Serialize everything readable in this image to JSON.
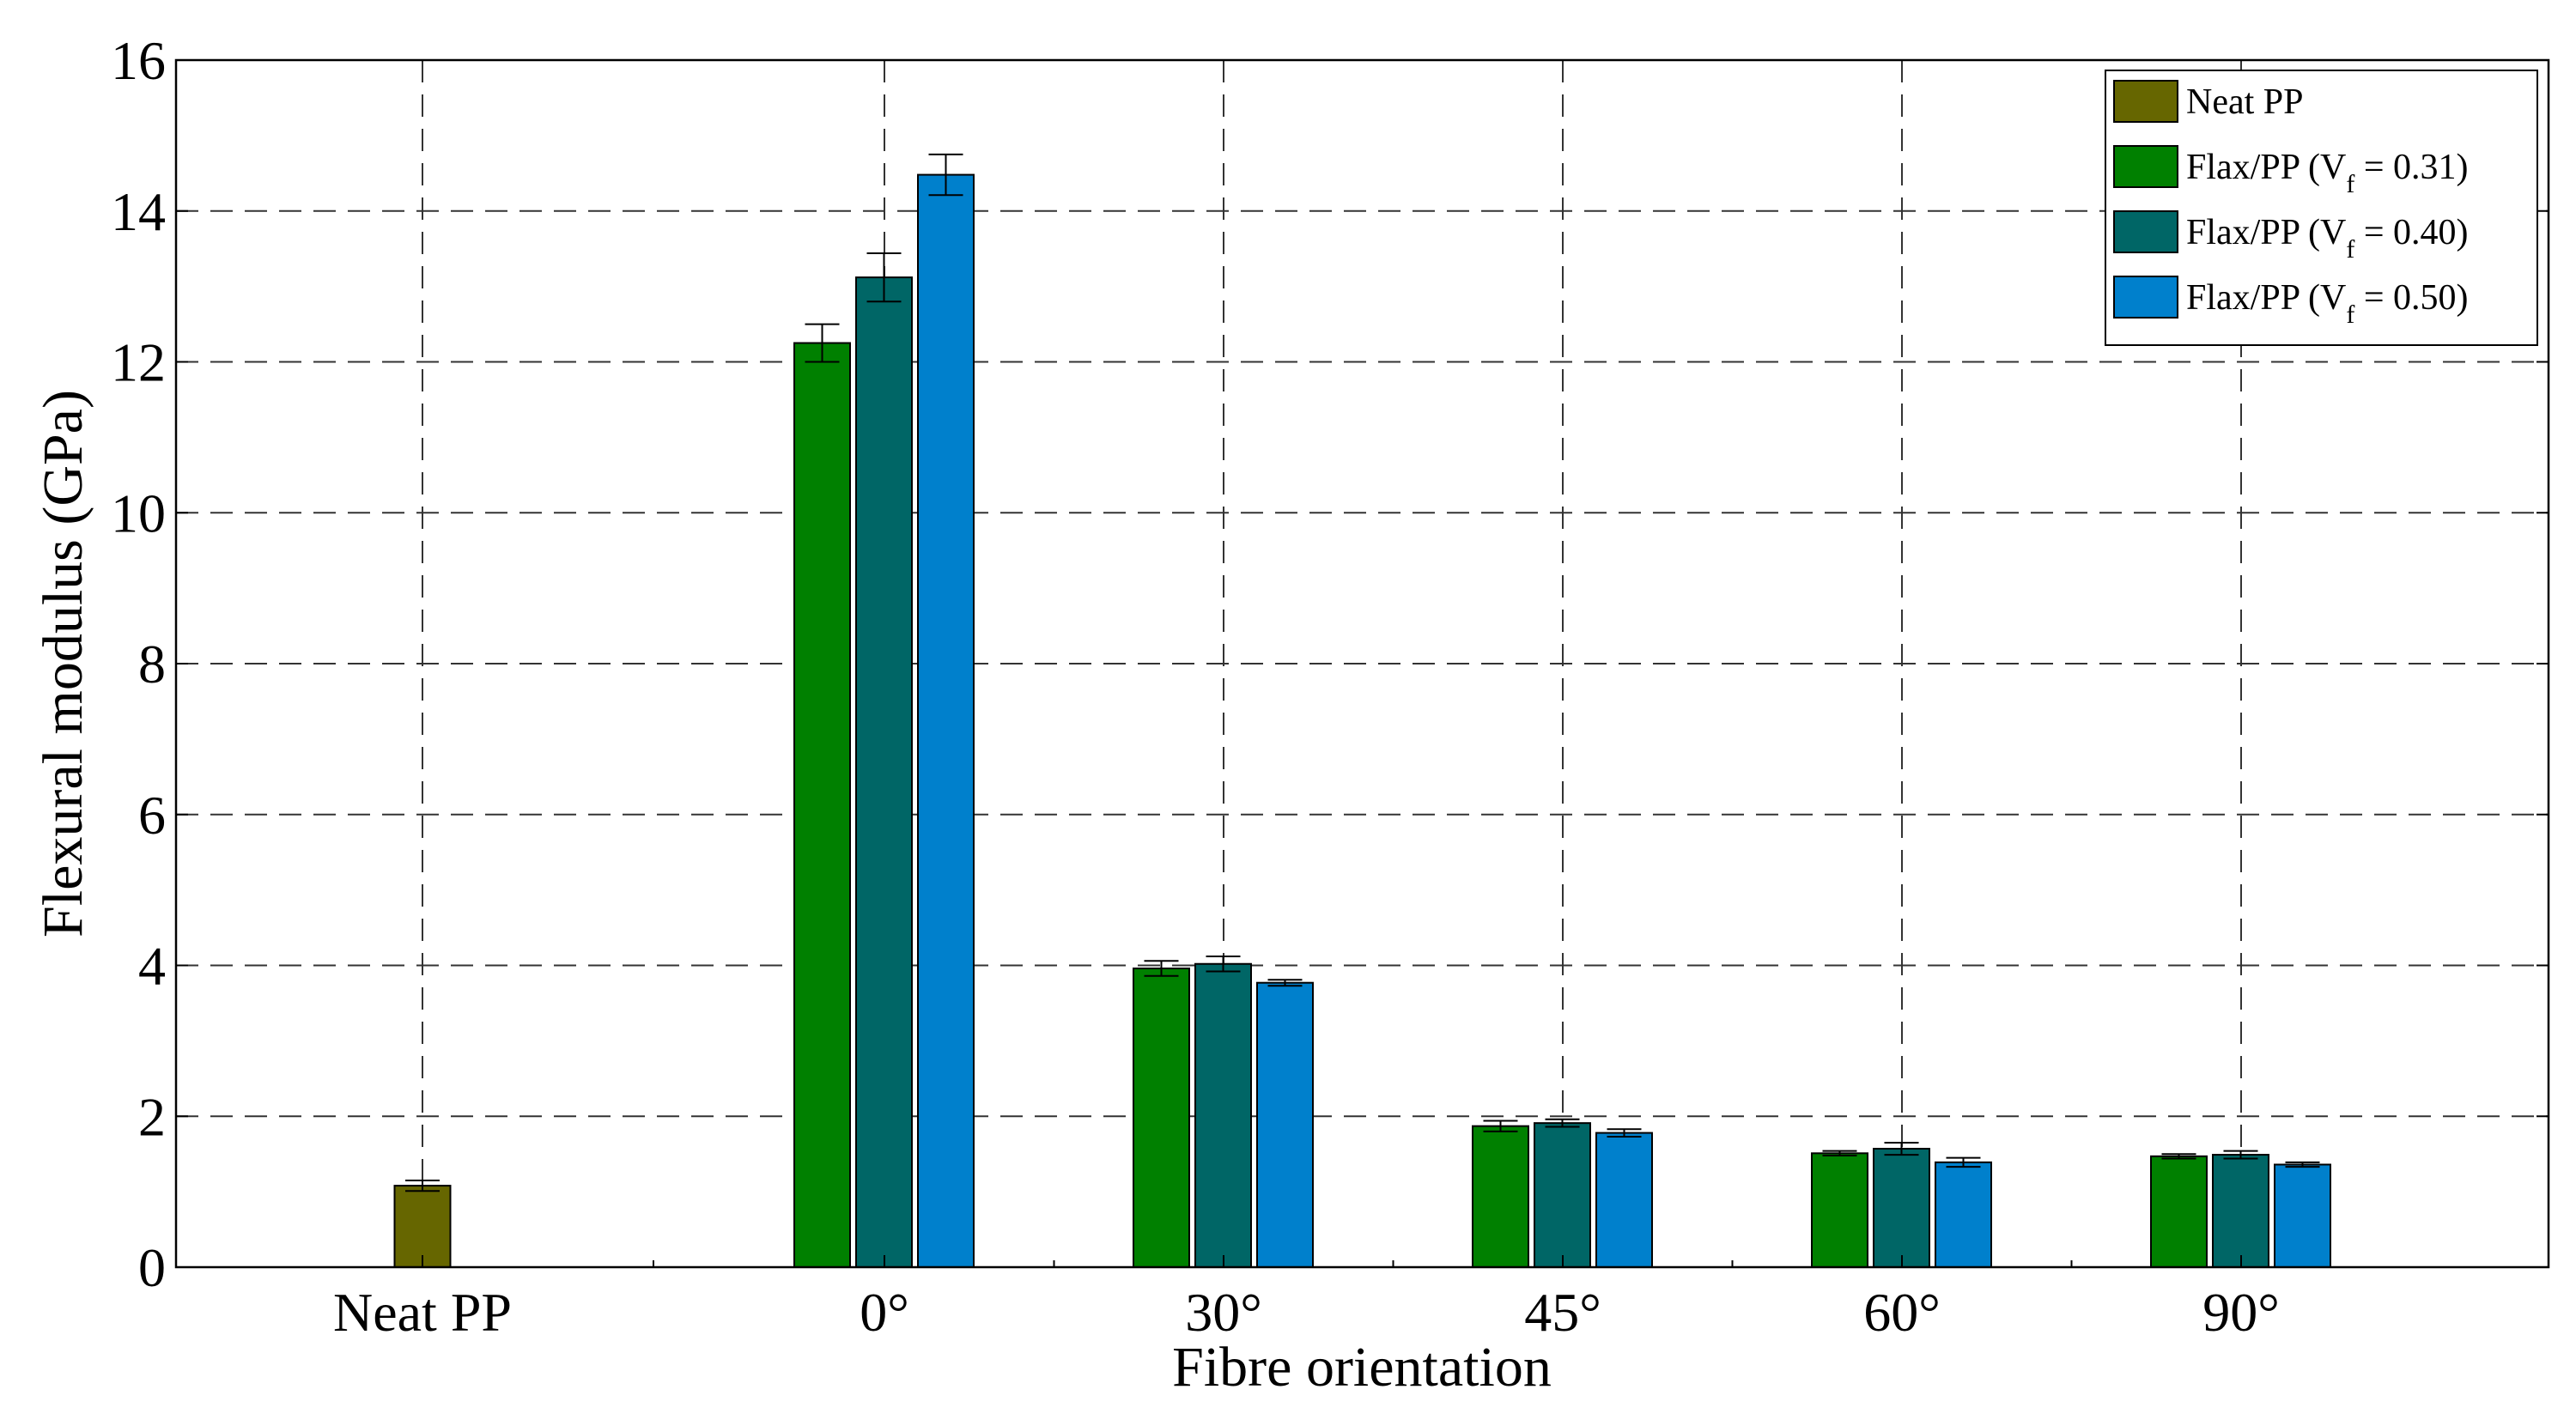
{
  "chart_data": {
    "type": "bar",
    "xlabel": "Fibre orientation",
    "ylabel": "Flexural modulus (GPa)",
    "ylim": [
      0,
      16
    ],
    "yticks": [
      0,
      2,
      4,
      6,
      8,
      10,
      12,
      14,
      16
    ],
    "grid": true,
    "legend_position": "top-right",
    "categories": [
      "Neat PP",
      "0°",
      "30°",
      "45°",
      "60°",
      "90°"
    ],
    "series": [
      {
        "name": "Neat PP",
        "legend_label": {
          "prefix": "Neat PP",
          "subscript": "",
          "suffix": ""
        },
        "color": "#666600",
        "values": [
          1.08,
          null,
          null,
          null,
          null,
          null
        ],
        "errors": [
          0.07,
          null,
          null,
          null,
          null,
          null
        ]
      },
      {
        "name": "Flax/PP (Vf = 0.31)",
        "legend_label": {
          "prefix": "Flax/PP (V",
          "subscript": "f",
          "suffix": " = 0.31)"
        },
        "color": "#008000",
        "values": [
          null,
          12.25,
          3.96,
          1.87,
          1.51,
          1.47
        ],
        "errors": [
          null,
          0.25,
          0.1,
          0.07,
          0.03,
          0.03
        ]
      },
      {
        "name": "Flax/PP (Vf = 0.40)",
        "legend_label": {
          "prefix": "Flax/PP (V",
          "subscript": "f",
          "suffix": " = 0.40)"
        },
        "color": "#006666",
        "values": [
          null,
          13.12,
          4.02,
          1.91,
          1.57,
          1.49
        ],
        "errors": [
          null,
          0.32,
          0.1,
          0.05,
          0.08,
          0.05
        ]
      },
      {
        "name": "Flax/PP (Vf = 0.50)",
        "legend_label": {
          "prefix": "Flax/PP (V",
          "subscript": "f",
          "suffix": " = 0.50)"
        },
        "color": "#0080CC",
        "values": [
          null,
          14.48,
          3.77,
          1.78,
          1.39,
          1.36
        ],
        "errors": [
          null,
          0.27,
          0.04,
          0.05,
          0.06,
          0.03
        ]
      }
    ]
  }
}
